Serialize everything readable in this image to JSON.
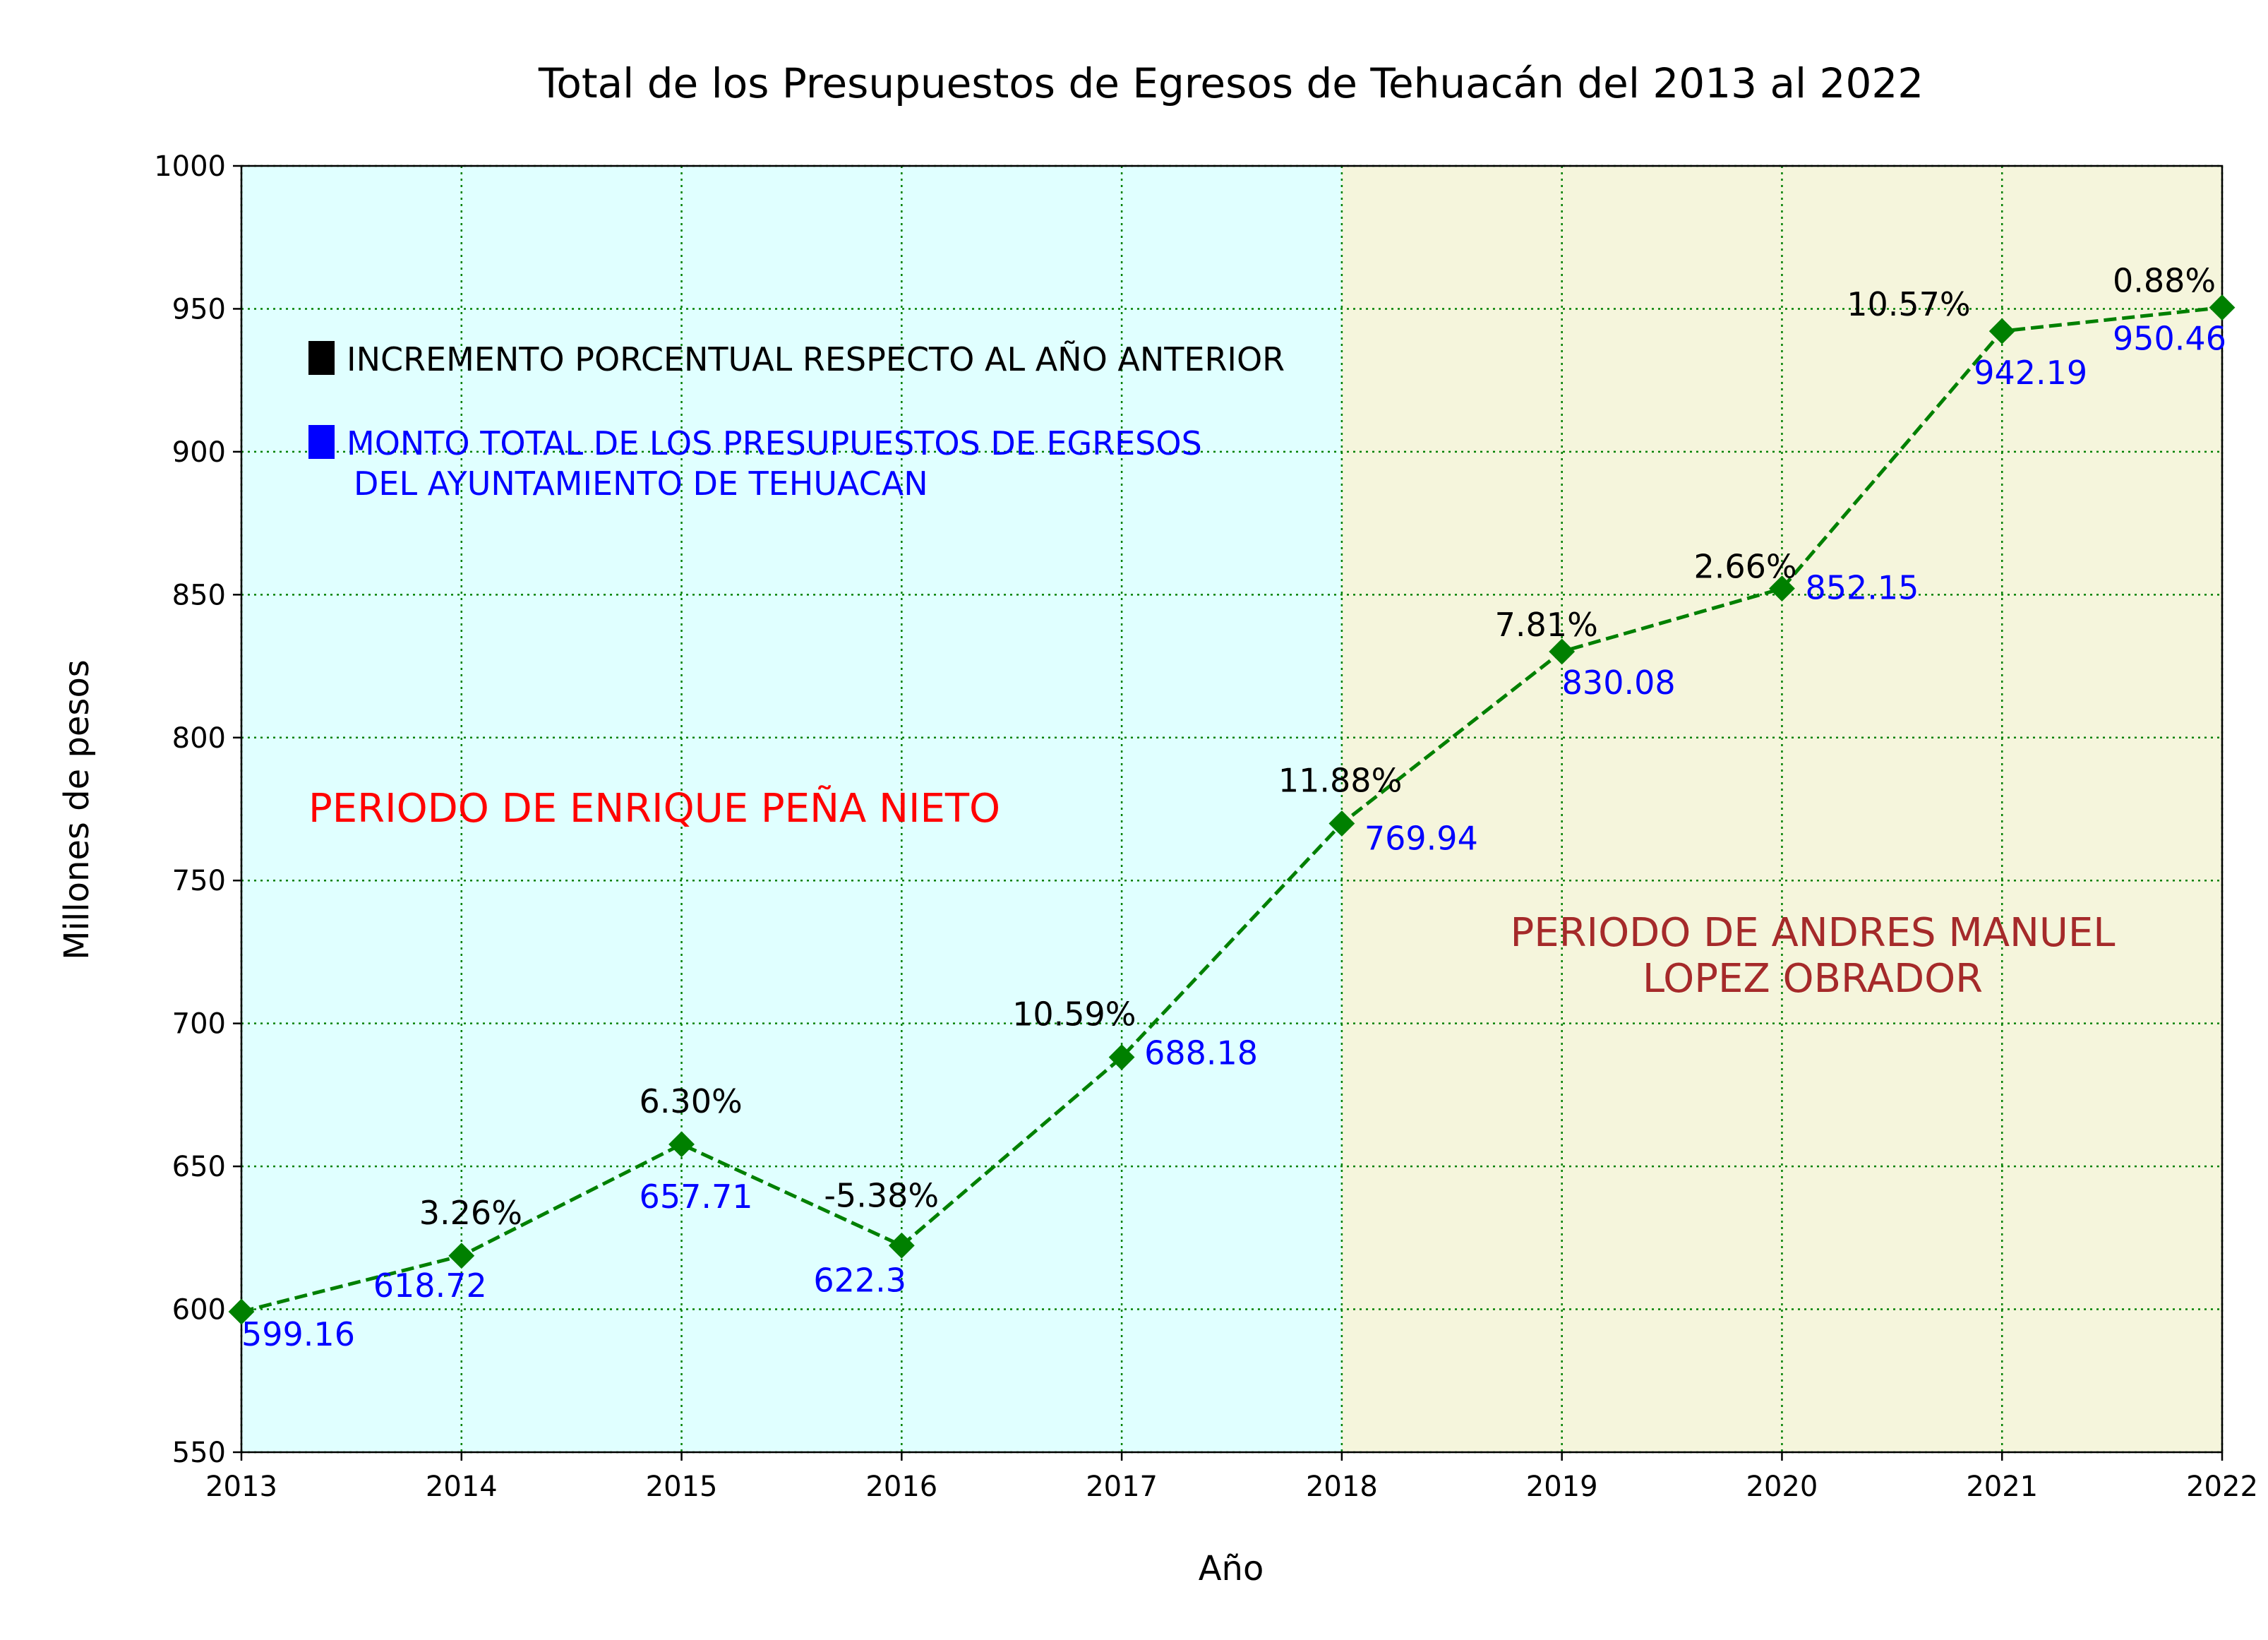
{
  "chart_data": {
    "type": "line",
    "title": "Total de los Presupuestos de Egresos de Tehuacán del 2013 al 2022",
    "xlabel": "Año",
    "ylabel": "Millones de pesos",
    "xlim": [
      2013,
      2022
    ],
    "ylim": [
      550,
      1000
    ],
    "yticks": [
      550,
      600,
      650,
      700,
      750,
      800,
      850,
      900,
      950,
      1000
    ],
    "xticks": [
      2013,
      2014,
      2015,
      2016,
      2017,
      2018,
      2019,
      2020,
      2021,
      2022
    ],
    "grid": true,
    "x": [
      2013,
      2014,
      2015,
      2016,
      2017,
      2018,
      2019,
      2020,
      2021,
      2022
    ],
    "series": [
      {
        "values": [
          599.16,
          618.72,
          657.71,
          622.3,
          688.18,
          769.94,
          830.08,
          852.15,
          942.19,
          950.46
        ],
        "value_labels": [
          "599.16",
          "618.72",
          "657.71",
          "622.3",
          "688.18",
          "769.94",
          "830.08",
          "852.15",
          "942.19",
          "950.46"
        ],
        "color": "#008000",
        "marker": "diamond",
        "linestyle": "dashed"
      }
    ],
    "pct_labels": [
      "",
      "3.26%",
      "6.30%",
      "-5.38%",
      "10.59%",
      "11.88%",
      "7.81%",
      "2.66%",
      "10.57%",
      "0.88%"
    ],
    "regions": [
      {
        "x_range": [
          2013,
          2018
        ],
        "color": "#e0ffff",
        "label": "PERIODO DE ENRIQUE PEÑA NIETO",
        "label_color": "#ff0000",
        "label_position": "left"
      },
      {
        "x_range": [
          2018,
          2022
        ],
        "color": "#f5f5dc",
        "label_lines": [
          "PERIODO DE ANDRES MANUEL",
          "LOPEZ OBRADOR"
        ],
        "label_color": "#a52a2a",
        "label_position": "right"
      }
    ],
    "legend": {
      "placement": "top-left",
      "items": [
        {
          "lines": [
            "INCREMENTO PORCENTUAL RESPECTO AL AÑO ANTERIOR"
          ],
          "color": "#000000"
        },
        {
          "lines": [
            "MONTO TOTAL DE LOS PRESUPUESTOS DE EGRESOS",
            "DEL AYUNTAMIENTO DE TEHUACAN"
          ],
          "color": "#0000ff"
        }
      ]
    },
    "colors": {
      "value_label": "#0000ff",
      "pct_label": "#000000",
      "grid": "#008000"
    }
  }
}
